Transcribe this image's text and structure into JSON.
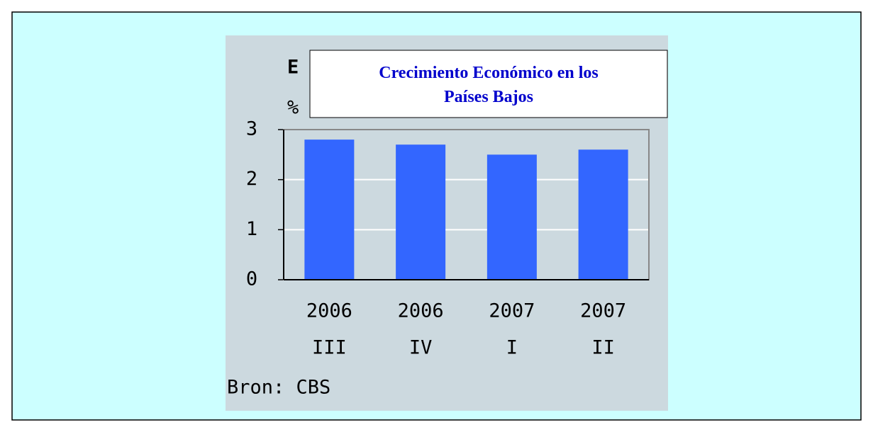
{
  "chart_data": {
    "type": "bar",
    "title": "Crecimiento Económico en los Países Bajos",
    "title_fragment": "E",
    "unit_fragment": "%",
    "source": "Bron: CBS",
    "categories": [
      [
        "2006",
        "III"
      ],
      [
        "2006",
        "IV"
      ],
      [
        "2007",
        "I"
      ],
      [
        "2007",
        "II"
      ]
    ],
    "values": [
      2.8,
      2.7,
      2.5,
      2.6
    ],
    "color": "#3366ff",
    "ylim": [
      0,
      3
    ],
    "yticks": [
      0,
      1,
      2,
      3
    ],
    "grid": true
  }
}
